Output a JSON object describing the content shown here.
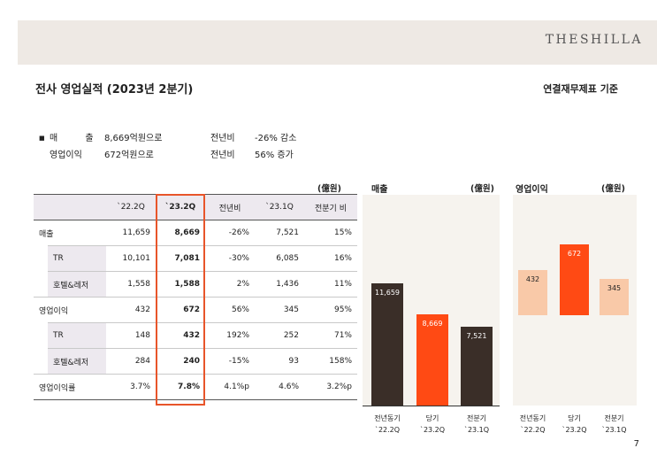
{
  "header": {
    "brand": "THESHILLA"
  },
  "page": {
    "title": "전사 영업실적 (2023년 2분기)",
    "basis": "연결재무제표 기준",
    "number": "7"
  },
  "summary": {
    "bullet": "■",
    "rows": [
      {
        "label": "매 출",
        "value": "8,669억원으로",
        "comp": "전년비",
        "change": "-26% 감소"
      },
      {
        "label": "영업이익",
        "value": "672억원으로",
        "comp": "전년비",
        "change": "56% 증가"
      }
    ]
  },
  "table": {
    "unit": "(億원)",
    "headers": [
      "`22.2Q",
      "`23.2Q",
      "전년비",
      "`23.1Q",
      "전분기 비"
    ],
    "rows": [
      {
        "label": "매출",
        "cells": [
          "11,659",
          "8,669",
          "-26%",
          "7,521",
          "15%"
        ]
      },
      {
        "label": "TR",
        "cells": [
          "10,101",
          "7,081",
          "-30%",
          "6,085",
          "16%"
        ]
      },
      {
        "label": "호텔&레저",
        "cells": [
          "1,558",
          "1,588",
          "2%",
          "1,436",
          "11%"
        ]
      },
      {
        "label": "영업이익",
        "cells": [
          "432",
          "672",
          "56%",
          "345",
          "95%"
        ]
      },
      {
        "label": "TR",
        "cells": [
          "148",
          "432",
          "192%",
          "252",
          "71%"
        ]
      },
      {
        "label": "호텔&레저",
        "cells": [
          "284",
          "240",
          "-15%",
          "93",
          "158%"
        ]
      },
      {
        "label": "영업이익률",
        "cells": [
          "3.7%",
          "7.8%",
          "4.1%p",
          "4.6%",
          "3.2%p"
        ]
      }
    ]
  },
  "colors": {
    "dark": "#3a2e28",
    "accent": "#ff4a14",
    "light": "#f9c9a8",
    "highlight": "#e8552a",
    "panel": "#f6f3ee"
  },
  "chart_data": [
    {
      "type": "bar",
      "title": "매출",
      "unit": "(億원)",
      "categories": [
        [
          "전년동기",
          "`22.2Q"
        ],
        [
          "당기",
          "`23.2Q"
        ],
        [
          "전분기",
          "`23.1Q"
        ]
      ],
      "values": [
        11659,
        8669,
        7521
      ],
      "labels": [
        "11,659",
        "8,669",
        "7,521"
      ],
      "ylim": [
        0,
        13000
      ]
    },
    {
      "type": "bar",
      "title": "영업이익",
      "unit": "(億원)",
      "categories": [
        [
          "전년동기",
          "`22.2Q"
        ],
        [
          "당기",
          "`23.2Q"
        ],
        [
          "전분기",
          "`23.1Q"
        ]
      ],
      "values": [
        432,
        672,
        345
      ],
      "labels": [
        "432",
        "672",
        "345"
      ],
      "ylim": [
        0,
        800
      ]
    }
  ]
}
